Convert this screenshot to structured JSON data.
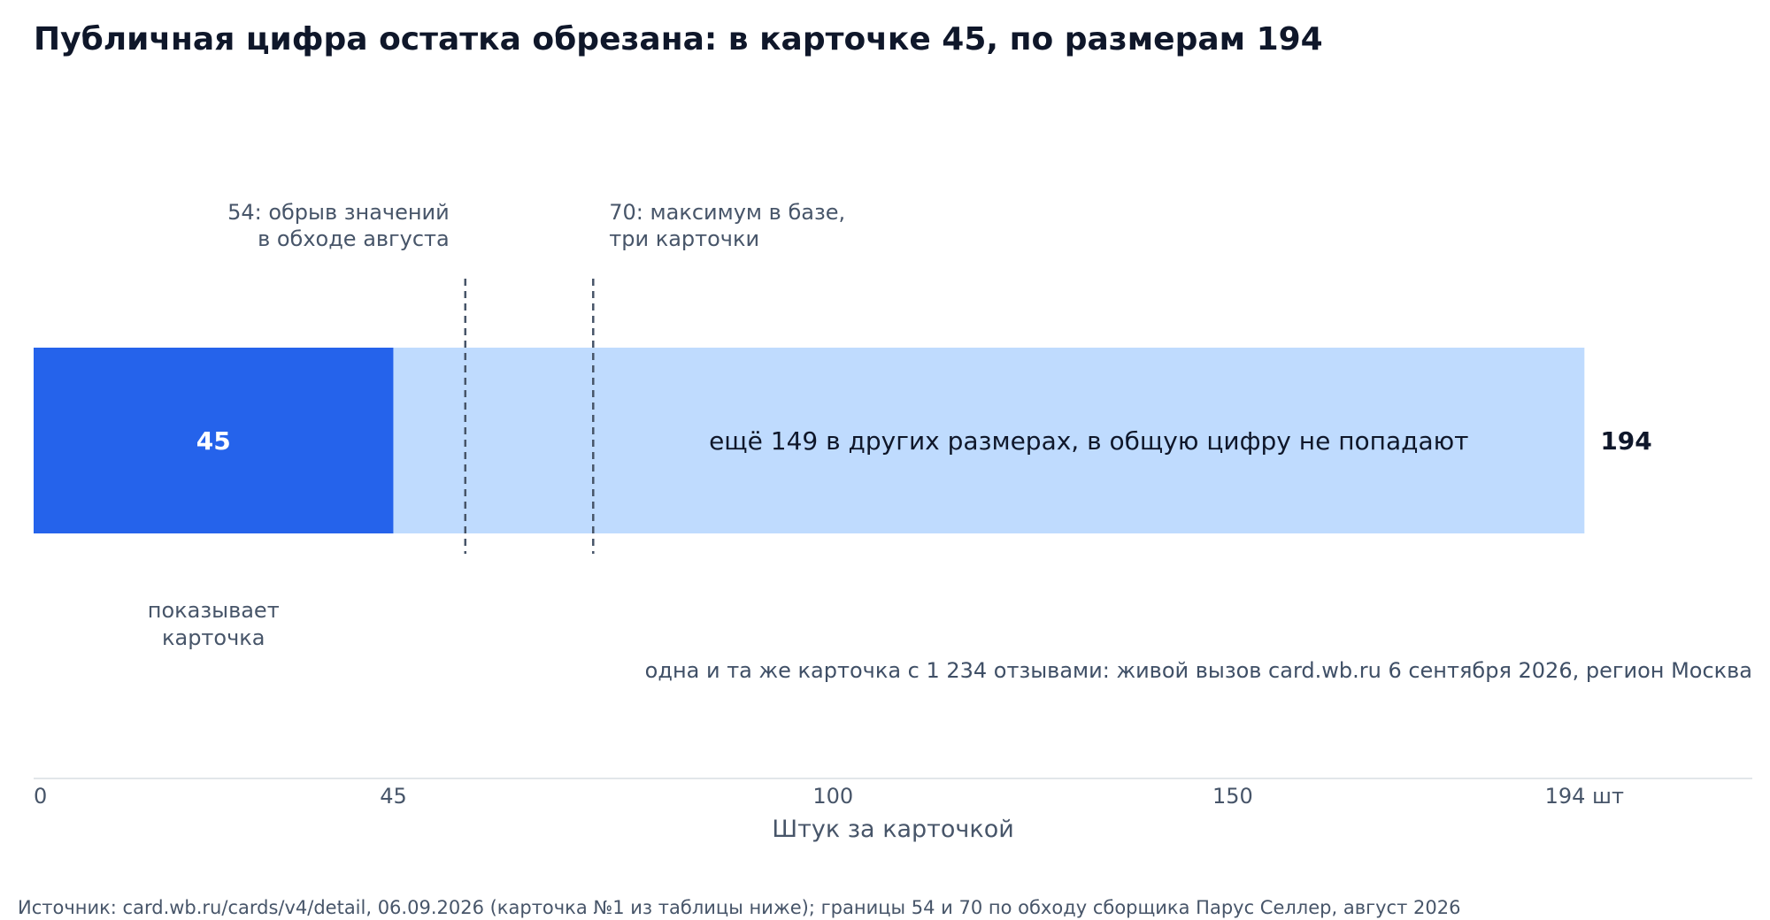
{
  "chart_data": {
    "type": "bar",
    "title": "Публичная цифра остатка обрезана: в карточке 45, по размерам 194",
    "xlabel": "Штук за карточкой",
    "xlim": [
      0,
      215
    ],
    "x_ticks": [
      {
        "value": 0,
        "label": "0"
      },
      {
        "value": 45,
        "label": "45"
      },
      {
        "value": 100,
        "label": "100"
      },
      {
        "value": 150,
        "label": "150"
      },
      {
        "value": 194,
        "label": "194 шт"
      }
    ],
    "segments": [
      {
        "value": 45,
        "label": "45",
        "color": "#2563eb",
        "caption_lines": [
          "показывает",
          "карточка"
        ]
      },
      {
        "value": 149,
        "label": "ещё 149 в других размерах, в общую цифру не попадают",
        "color": "#bfdbfe"
      }
    ],
    "total": {
      "value": 194,
      "label": "194"
    },
    "reference_lines": [
      {
        "value": 54,
        "label_lines": [
          "54: обрыв значений",
          "в обходе августа"
        ]
      },
      {
        "value": 70,
        "label_lines": [
          "70: максимум в базе,",
          "три карточки"
        ]
      }
    ],
    "note": "одна и та же карточка с 1 234 отзывами: живой вызов card.wb.ru 6 сентября 2026, регион Москва",
    "source": "Источник: card.wb.ru/cards/v4/detail, 06.09.2026 (карточка №1 из таблицы ниже); границы 54 и 70 по обходу сборщика Парус Селлер, август 2026"
  }
}
